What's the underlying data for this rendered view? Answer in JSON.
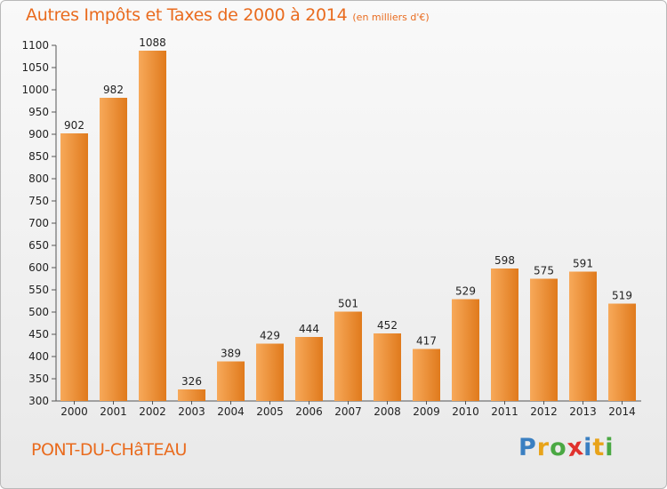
{
  "title": "Autres Impôts et Taxes de 2000 à 2014",
  "unit": "(en milliers d'€)",
  "commune": "PONT-DU-CHâTEAU",
  "logo": {
    "letters": [
      "P",
      "r",
      "o",
      "x",
      "i",
      "t",
      "i"
    ],
    "colors": [
      "#3a7fc1",
      "#e8a31a",
      "#4aa843",
      "#e0312d",
      "#3a7fc1",
      "#e8a31a",
      "#4aa843"
    ]
  },
  "colors": {
    "bar_light": "#f7a95a",
    "bar_dark": "#e07a1c",
    "title": "#e96b1e"
  },
  "chart_data": {
    "type": "bar",
    "categories": [
      "2000",
      "2001",
      "2002",
      "2003",
      "2004",
      "2005",
      "2006",
      "2007",
      "2008",
      "2009",
      "2010",
      "2011",
      "2012",
      "2013",
      "2014"
    ],
    "values": [
      902,
      982,
      1088,
      326,
      389,
      429,
      444,
      501,
      452,
      417,
      529,
      598,
      575,
      591,
      519
    ],
    "ylim": [
      300,
      1100
    ],
    "yticks": [
      300,
      350,
      400,
      450,
      500,
      550,
      600,
      650,
      700,
      750,
      800,
      850,
      900,
      950,
      1000,
      1050,
      1100
    ],
    "grid": false,
    "legend": "none"
  }
}
